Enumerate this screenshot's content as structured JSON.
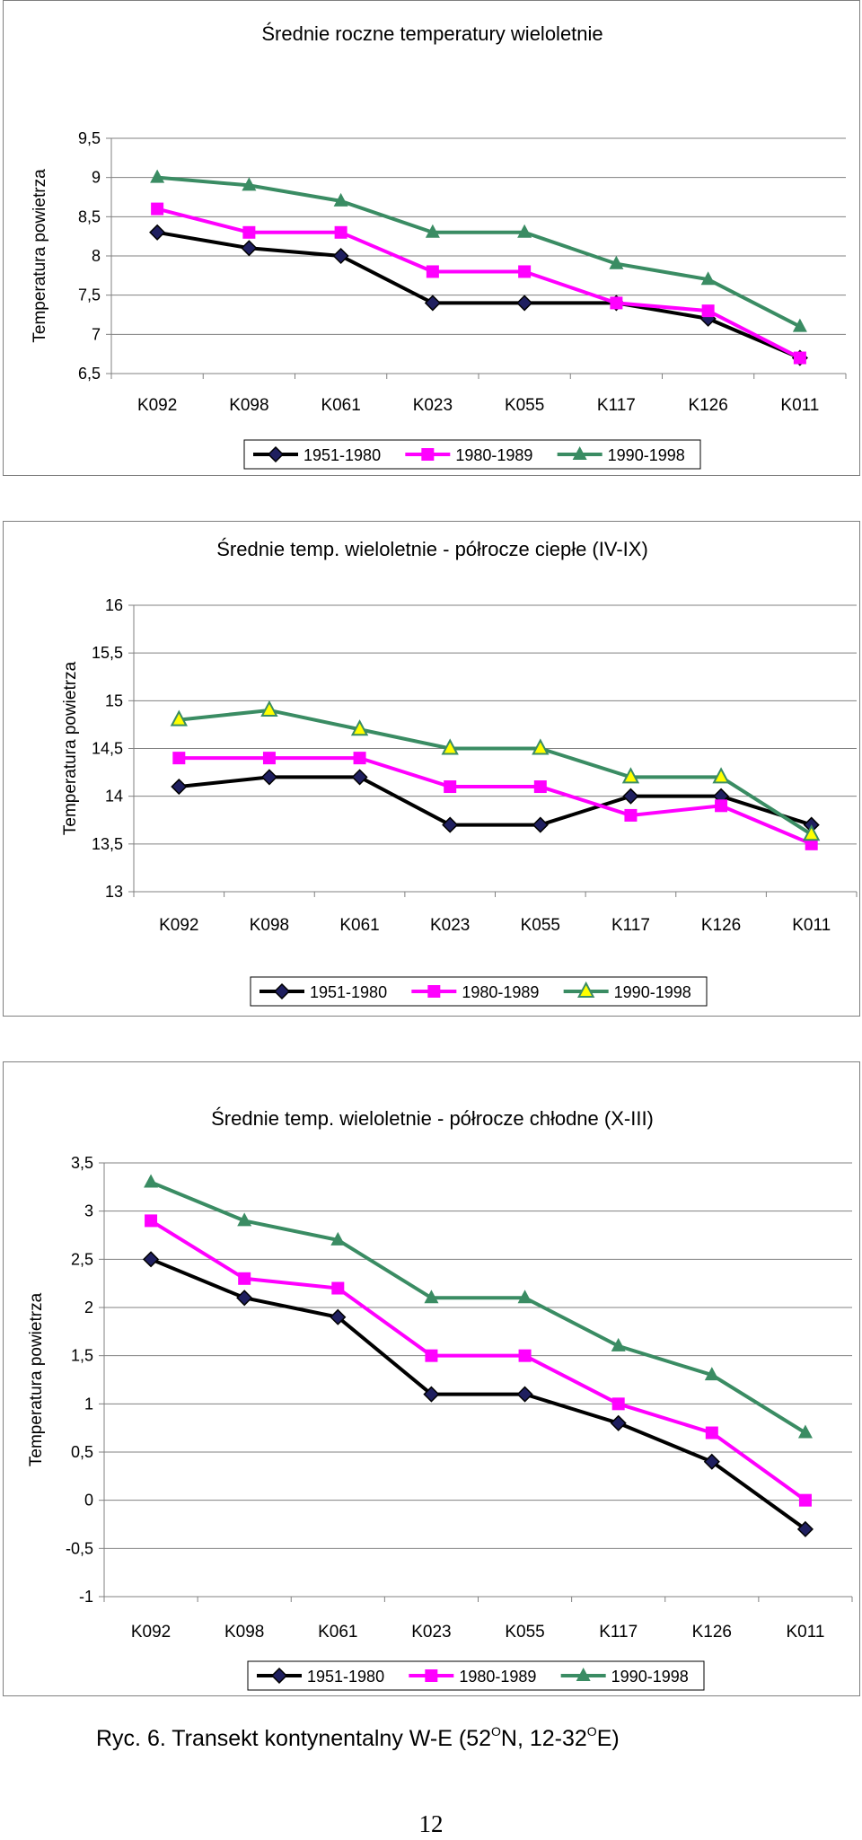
{
  "colors": {
    "series1": "#000000",
    "series1_marker": "#1f1f5f",
    "series2": "#ff00ff",
    "series3": "#3a8c63",
    "series3_marker_alt": "#ffff00",
    "grid": "#808080"
  },
  "chart_data": [
    {
      "type": "line",
      "title": "Średnie roczne temperatury wieloletnie",
      "ylabel": "Temperatura powietrza",
      "xlabel": "",
      "categories": [
        "K092",
        "K098",
        "K061",
        "K023",
        "K055",
        "K117",
        "K126",
        "K011"
      ],
      "ylim": [
        6.5,
        9.5
      ],
      "yticks": [
        6.5,
        7,
        7.5,
        8,
        8.5,
        9,
        9.5
      ],
      "ytick_labels": [
        "6,5",
        "7",
        "7,5",
        "8",
        "8,5",
        "9",
        "9,5"
      ],
      "grid": true,
      "legend_position": "bottom",
      "series": [
        {
          "name": "1951-1980",
          "marker": "diamond",
          "values": [
            8.3,
            8.1,
            8.0,
            7.4,
            7.4,
            7.4,
            7.2,
            6.7
          ]
        },
        {
          "name": "1980-1989",
          "marker": "square",
          "values": [
            8.6,
            8.3,
            8.3,
            7.8,
            7.8,
            7.4,
            7.3,
            6.7
          ]
        },
        {
          "name": "1990-1998",
          "marker": "triangle",
          "values": [
            9.0,
            8.9,
            8.7,
            8.3,
            8.3,
            7.9,
            7.7,
            7.1
          ]
        }
      ]
    },
    {
      "type": "line",
      "title": "Średnie temp. wieloletnie - półrocze ciepłe (IV-IX)",
      "ylabel": "Temperatura powietrza",
      "xlabel": "",
      "categories": [
        "K092",
        "K098",
        "K061",
        "K023",
        "K055",
        "K117",
        "K126",
        "K011"
      ],
      "ylim": [
        13,
        16
      ],
      "yticks": [
        13,
        13.5,
        14,
        14.5,
        15,
        15.5,
        16
      ],
      "ytick_labels": [
        "13",
        "13,5",
        "14",
        "14,5",
        "15",
        "15,5",
        "16"
      ],
      "grid": true,
      "legend_position": "bottom",
      "series": [
        {
          "name": "1951-1980",
          "marker": "diamond",
          "values": [
            14.1,
            14.2,
            14.2,
            13.7,
            13.7,
            14.0,
            14.0,
            13.7
          ]
        },
        {
          "name": "1980-1989",
          "marker": "square",
          "values": [
            14.4,
            14.4,
            14.4,
            14.1,
            14.1,
            13.8,
            13.9,
            13.5
          ]
        },
        {
          "name": "1990-1998",
          "marker": "triangle-yellow",
          "values": [
            14.8,
            14.9,
            14.7,
            14.5,
            14.5,
            14.2,
            14.2,
            13.6
          ]
        }
      ]
    },
    {
      "type": "line",
      "title": "Średnie temp. wieloletnie - półrocze chłodne (X-III)",
      "ylabel": "Temperatura powietrza",
      "xlabel": "",
      "categories": [
        "K092",
        "K098",
        "K061",
        "K023",
        "K055",
        "K117",
        "K126",
        "K011"
      ],
      "ylim": [
        -1,
        3.5
      ],
      "yticks": [
        -1,
        -0.5,
        0,
        0.5,
        1,
        1.5,
        2,
        2.5,
        3,
        3.5
      ],
      "ytick_labels": [
        "-1",
        "-0,5",
        "0",
        "0,5",
        "1",
        "1,5",
        "2",
        "2,5",
        "3",
        "3,5"
      ],
      "grid": true,
      "legend_position": "bottom",
      "series": [
        {
          "name": "1951-1980",
          "marker": "diamond",
          "values": [
            2.5,
            2.1,
            1.9,
            1.1,
            1.1,
            0.8,
            0.4,
            -0.3
          ]
        },
        {
          "name": "1980-1989",
          "marker": "square",
          "values": [
            2.9,
            2.3,
            2.2,
            1.5,
            1.5,
            1.0,
            0.7,
            0.0
          ]
        },
        {
          "name": "1990-1998",
          "marker": "triangle",
          "values": [
            3.3,
            2.9,
            2.7,
            2.1,
            2.1,
            1.6,
            1.3,
            0.7
          ]
        }
      ]
    }
  ],
  "caption": {
    "prefix": "Ryc. 6. Transekt kontynentalny W-E (52",
    "sup1": "O",
    "mid": "N, 12-32",
    "sup2": "O",
    "suffix": "E)"
  },
  "page_number": "12"
}
